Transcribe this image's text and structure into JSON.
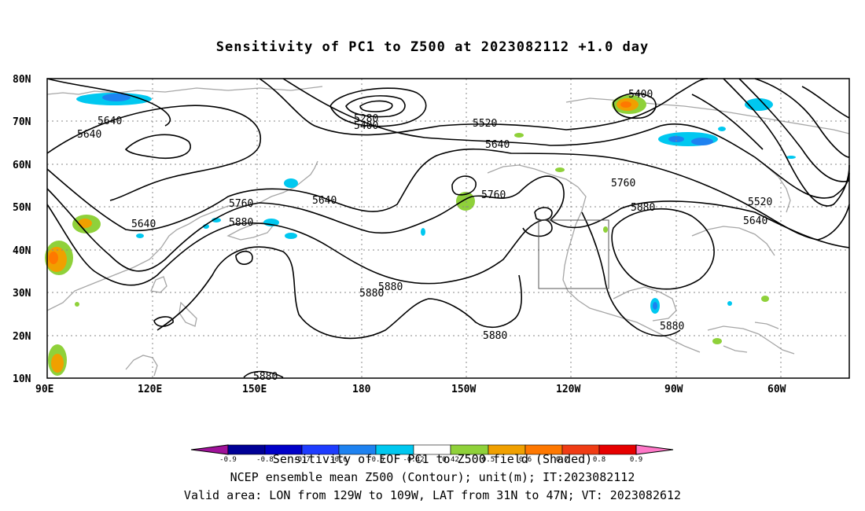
{
  "title": "Sensitivity of PC1 to Z500 at 2023082112 +1.0 day",
  "map": {
    "lat_labels": [
      "80N",
      "70N",
      "60N",
      "50N",
      "40N",
      "30N",
      "20N",
      "10N"
    ],
    "lon_labels": [
      "90E",
      "120E",
      "150E",
      "180",
      "150W",
      "120W",
      "90W",
      "60W"
    ],
    "contour_labels": [
      "5640",
      "5640",
      "5640",
      "5640",
      "5280",
      "5400",
      "5520",
      "5640",
      "5760",
      "5760",
      "5880",
      "5640",
      "5760",
      "5880",
      "5880",
      "5880",
      "5880",
      "5880",
      "5880",
      "5400",
      "5520",
      "5640",
      "5760",
      "5880"
    ]
  },
  "colorbar": {
    "tick_labels": [
      "-0.9",
      "-0.8",
      "-0.7",
      "-0.6",
      "-0.5",
      "-0.42",
      "0.42",
      "0.5",
      "0.6",
      "0.7",
      "0.8",
      "0.9"
    ],
    "colors": [
      "#a0129a",
      "#000096",
      "#0000c8",
      "#1e3cff",
      "#1e82f0",
      "#00c8f0",
      "#ffffff",
      "#8fd13a",
      "#f0a000",
      "#ff7800",
      "#f03c14",
      "#e60000",
      "#ff78c8"
    ]
  },
  "footer": {
    "line1": "Sensitivity of EOF PC1 to Z500 field (Shaded)",
    "line2": "NCEP ensemble mean Z500 (Contour); unit(m); IT:2023082112",
    "line3": "Valid area: LON from 129W to 109W, LAT from 31N to 47N; VT: 2023082612"
  }
}
